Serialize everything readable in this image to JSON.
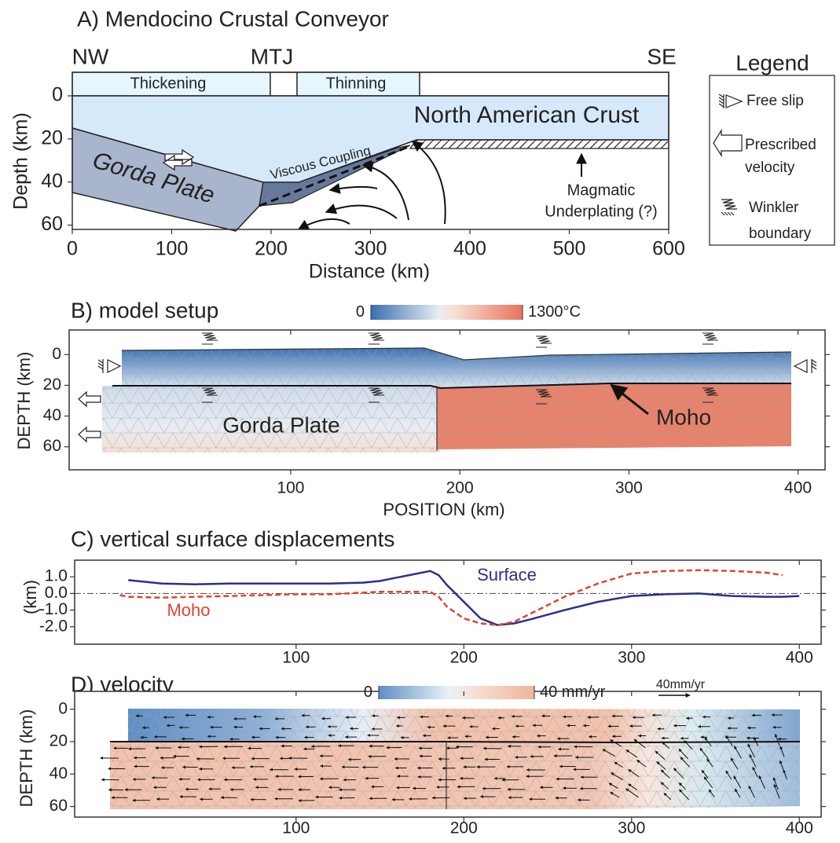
{
  "chart_data": [
    {
      "type": "section",
      "title": "A) Mendocino Crustal Conveyor",
      "x_label": "Distance (km)",
      "y_label": "Depth (km)",
      "xlim": [
        0,
        600
      ],
      "xticks": [
        0,
        100,
        200,
        300,
        400,
        500,
        600
      ],
      "ylim": [
        62,
        0
      ],
      "yticks": [
        0,
        20,
        40,
        60
      ],
      "annotations": [
        "NW",
        "MTJ",
        "SE",
        "Thickening",
        "Thinning",
        "North American Crust",
        "Gorda Plate",
        "Viscous Coupling",
        "Magmatic",
        "Underplating (?)"
      ],
      "legend": {
        "title": "Legend",
        "items": [
          [
            "Free slip"
          ],
          [
            "Prescribed",
            "velocity"
          ],
          [
            "Winkler",
            "boundary"
          ]
        ]
      }
    },
    {
      "type": "mesh",
      "title": "B) model setup",
      "x_label": "POSITION (km)",
      "y_label": "DEPTH (km)",
      "xlim": [
        -31,
        416
      ],
      "xticks": [
        100,
        200,
        300,
        400
      ],
      "ylim": [
        75,
        -16
      ],
      "yticks": [
        0,
        20,
        40,
        60
      ],
      "colorbar": {
        "ticks": [
          0,
          {
            "value": 1300,
            "label": "1300°C"
          }
        ]
      },
      "annotations": [
        "Gorda Plate",
        "Moho"
      ]
    },
    {
      "type": "line",
      "title": "C) vertical surface displacements",
      "y_label": "(km)",
      "xlim": [
        -32,
        413
      ],
      "xticks": [
        100,
        200,
        300,
        400
      ],
      "ylim": [
        -3.05,
        2.0
      ],
      "yticks": [
        {
          "value": 1,
          "label": "1.0"
        },
        {
          "value": 0,
          "label": "0.0"
        },
        {
          "value": -1,
          "label": "-1.0"
        },
        {
          "value": -2,
          "label": "-2.0"
        }
      ],
      "zero_line": true,
      "x": [
        -5,
        0,
        20,
        40,
        60,
        80,
        100,
        120,
        140,
        150,
        160,
        170,
        180,
        185,
        190,
        200,
        210,
        220,
        230,
        240,
        260,
        280,
        300,
        320,
        340,
        360,
        380,
        390,
        400
      ],
      "series": [
        {
          "name": "Surface",
          "color": "#2b2f8a",
          "linestyle": "solid",
          "values": [
            null,
            0.8,
            0.6,
            0.55,
            0.6,
            0.6,
            0.6,
            0.6,
            0.65,
            0.75,
            0.95,
            1.15,
            1.35,
            1.1,
            0.5,
            -0.5,
            -1.5,
            -1.9,
            -1.8,
            -1.55,
            -1.0,
            -0.5,
            -0.15,
            -0.05,
            0.0,
            -0.15,
            -0.2,
            -0.2,
            -0.15
          ]
        },
        {
          "name": "Moho",
          "color": "#e0442e",
          "linestyle": "dashed",
          "values": [
            -0.1,
            -0.2,
            -0.25,
            -0.2,
            -0.15,
            -0.1,
            -0.05,
            -0.05,
            0.05,
            0.1,
            0.1,
            0.1,
            0.1,
            -0.2,
            -0.8,
            -1.5,
            -1.8,
            -1.9,
            -1.7,
            -1.2,
            -0.2,
            0.6,
            1.2,
            1.35,
            1.4,
            1.35,
            1.25,
            1.1,
            null
          ]
        }
      ]
    },
    {
      "type": "mesh",
      "title": "D) velocity",
      "y_label": "DEPTH (km)",
      "xlim": [
        -32,
        413
      ],
      "xticks": [
        100,
        200,
        300,
        400
      ],
      "ylim": [
        66.5,
        -11
      ],
      "yticks": [
        0,
        20,
        40,
        60
      ],
      "colorbar": {
        "ticks": [
          0,
          {
            "value": 40,
            "label": "40 mm/yr"
          }
        ]
      },
      "scale_arrow": {
        "value": 40,
        "label": "40mm/yr"
      }
    }
  ]
}
